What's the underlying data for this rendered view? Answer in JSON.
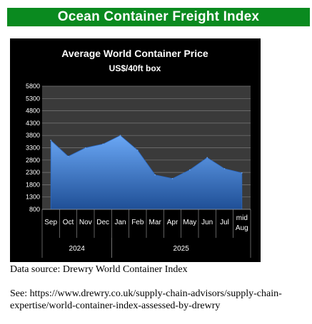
{
  "banner": {
    "title": "Ocean Container Freight Index",
    "color": "#0a8a1f"
  },
  "chart_data": {
    "type": "area",
    "title": "Average World Container Price",
    "subtitle": "US$/40ft box",
    "categories": [
      "Sep",
      "Oct",
      "Nov",
      "Dec",
      "Jan",
      "Feb",
      "Mar",
      "Apr",
      "May",
      "Jun",
      "Jul",
      "mid Aug"
    ],
    "category_lines": [
      [
        "Sep"
      ],
      [
        "Oct"
      ],
      [
        "Nov"
      ],
      [
        "Dec"
      ],
      [
        "Jan"
      ],
      [
        "Feb"
      ],
      [
        "Mar"
      ],
      [
        "Apr"
      ],
      [
        "May"
      ],
      [
        "Jun"
      ],
      [
        "Jul"
      ],
      [
        "mid",
        "Aug"
      ]
    ],
    "year_groups": [
      {
        "label": "2024",
        "start": 0,
        "end": 3
      },
      {
        "label": "2025",
        "start": 4,
        "end": 11
      }
    ],
    "series": [
      {
        "values": [
          3600,
          2950,
          3300,
          3450,
          3800,
          3200,
          2200,
          2050,
          2400,
          2900,
          2450,
          2280
        ]
      }
    ],
    "yticks": [
      800,
      1300,
      1800,
      2300,
      2800,
      3300,
      3800,
      4300,
      4800,
      5300,
      5800
    ],
    "ylim": [
      800,
      5800
    ],
    "grid": true,
    "legend": "none",
    "colors": {
      "fill_top": "#5b9bf0",
      "fill_bottom": "#1f4f96",
      "background": "#000000",
      "text": "#ffffff"
    }
  },
  "footer": {
    "source": "Data source:  Drewry World Container Index",
    "see": "See: https://www.drewry.co.uk/supply-chain-advisors/supply-chain-expertise/world-container-index-assessed-by-drewry"
  }
}
